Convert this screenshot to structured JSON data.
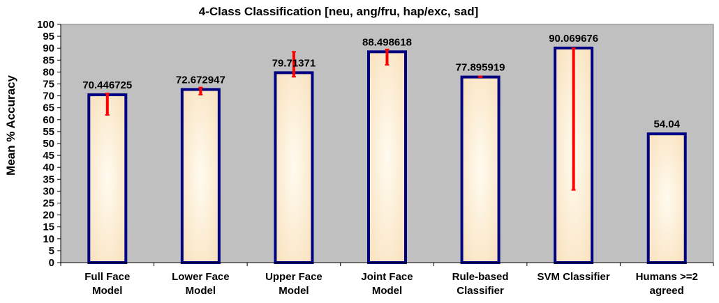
{
  "chart_data": {
    "type": "bar",
    "title": "4-Class Classification  [neu, ang/fru, hap/exc, sad]",
    "xlabel": "",
    "ylabel": "Mean % Accuracy",
    "ylim": [
      0,
      100
    ],
    "yticks": [
      0,
      5,
      10,
      15,
      20,
      25,
      30,
      35,
      40,
      45,
      50,
      55,
      60,
      65,
      70,
      75,
      80,
      85,
      90,
      95,
      100
    ],
    "grid": false,
    "legend": "none",
    "categories": [
      [
        "Full Face",
        "Model"
      ],
      [
        "Lower Face",
        "Model"
      ],
      [
        "Upper Face",
        "Model"
      ],
      [
        "Joint Face",
        "Model"
      ],
      [
        "Rule-based",
        "Classifier"
      ],
      [
        "SVM Classifier"
      ],
      [
        "Humans >=2",
        "agreed"
      ]
    ],
    "values": [
      70.446725,
      72.672947,
      79.71371,
      88.498618,
      77.895919,
      90.069676,
      54.04
    ],
    "value_labels": [
      "70.446725",
      "72.672947",
      "79.71371",
      "88.498618",
      "77.895919",
      "90.069676",
      "54.04"
    ],
    "error_ranges": [
      [
        62,
        71
      ],
      [
        70.5,
        73.5
      ],
      [
        78,
        88.5
      ],
      [
        83,
        89.5
      ],
      [
        77.8,
        78.2
      ],
      [
        30.5,
        90
      ],
      null
    ],
    "colors": {
      "plot_background": "#c0c0c0",
      "bar_fill_center": "#fffbf0",
      "bar_fill_edge": "#f8dfb8",
      "bar_border": "#000080",
      "error_bar": "#ff0000",
      "text": "#000000"
    }
  }
}
